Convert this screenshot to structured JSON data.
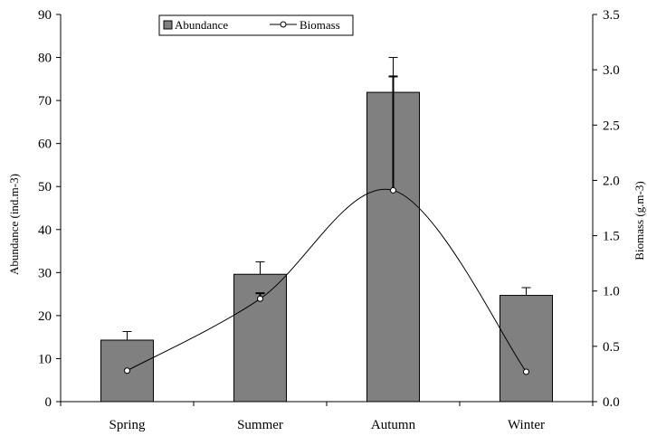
{
  "chart_data": {
    "type": "bar",
    "categories": [
      "Spring",
      "Summer",
      "Autumn",
      "Winter"
    ],
    "xlabel": "",
    "ylabel": "Abundance (ind.m-3)",
    "y2label": "Biomass (g.m-3)",
    "ylim": [
      0,
      90
    ],
    "y2lim": [
      0,
      3.5
    ],
    "yticks": [
      "0",
      "10",
      "20",
      "30",
      "40",
      "50",
      "60",
      "70",
      "80",
      "90"
    ],
    "y2ticks": [
      "0.0",
      "0.5",
      "1.0",
      "1.5",
      "2.0",
      "2.5",
      "3.0",
      "3.5"
    ],
    "legend_position": "top-center",
    "grid": false,
    "series": [
      {
        "name": "Abundance",
        "type": "bar",
        "axis": "left",
        "values": [
          14.3,
          29.6,
          71.9,
          24.7
        ],
        "error_upper": [
          16.3,
          32.5,
          80.0,
          26.5
        ],
        "color": "#808080"
      },
      {
        "name": "Biomass",
        "type": "line",
        "axis": "right",
        "smooth": true,
        "values": [
          0.28,
          0.93,
          1.91,
          0.27
        ],
        "error_upper": [
          0.28,
          0.98,
          2.94,
          0.27
        ],
        "color": "#000000"
      }
    ]
  }
}
